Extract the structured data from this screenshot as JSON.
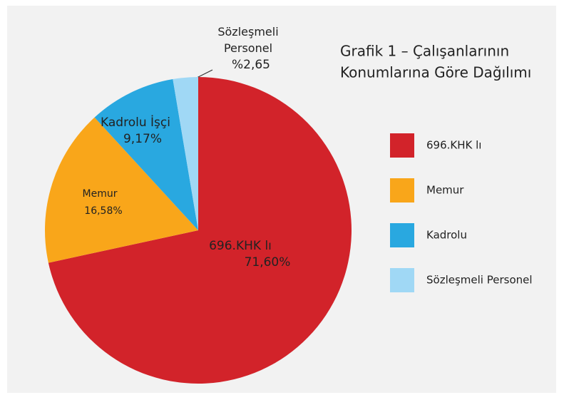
{
  "chart_data": {
    "type": "pie",
    "title": [
      "Grafik 1 – Çalışanlarının",
      "Konumlarına Göre Dağılımı"
    ],
    "categories": [
      "696.KHK lı",
      "Memur",
      "Kadrolu",
      "Sözleşmeli Personel"
    ],
    "slice_labels": [
      "696.KHK lı",
      "Memur",
      "Kadrolu İşçi",
      "Sözleşmeli Personel"
    ],
    "values": [
      71.6,
      16.58,
      9.17,
      2.65
    ],
    "value_labels": [
      "71,60%",
      "16,58%",
      "9,17%",
      "%2,65"
    ],
    "colors": [
      "#d2232a",
      "#f9a61a",
      "#29a8e0",
      "#a0d8f5"
    ],
    "legend": "right"
  }
}
